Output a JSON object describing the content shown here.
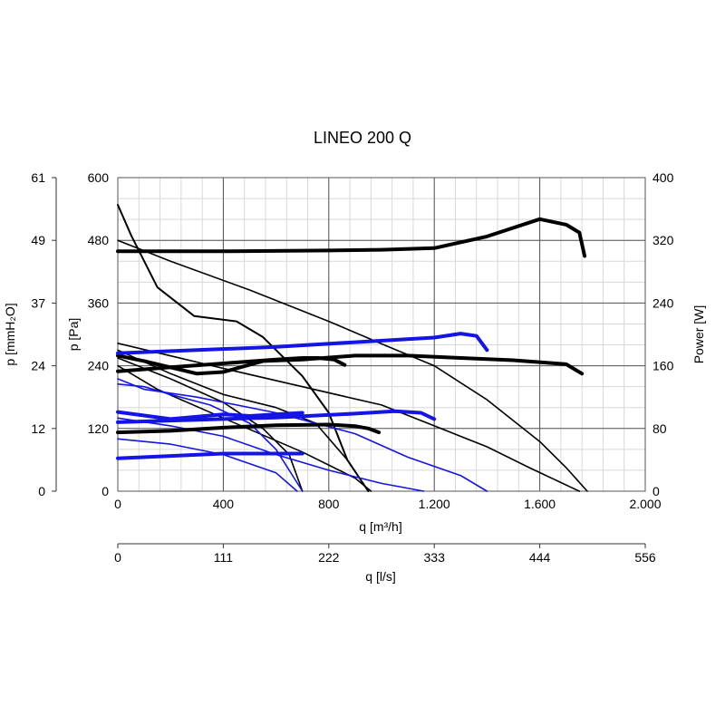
{
  "chart_data": {
    "type": "line",
    "title": "LINEO 200 Q",
    "x_axis": {
      "label": "q [m³/h]",
      "range": [
        0,
        2000
      ],
      "ticks": [
        0,
        400,
        800,
        1200,
        1600,
        2000
      ],
      "tick_labels": [
        "0",
        "400",
        "800",
        "1.200",
        "1.600",
        "2.000"
      ],
      "minor_step": 80
    },
    "x2_axis": {
      "label": "q [l/s]",
      "tick_labels": [
        "0",
        "111",
        "222",
        "333",
        "444",
        "556"
      ]
    },
    "y_axis": {
      "label": "p [Pa]",
      "range": [
        0,
        600
      ],
      "ticks": [
        0,
        120,
        240,
        360,
        480,
        600
      ],
      "tick_labels": [
        "0",
        "120",
        "240",
        "360",
        "480",
        "600"
      ],
      "minor_step": 40
    },
    "y2_axis": {
      "label": "p [mmH₂O]",
      "tick_labels": [
        "0",
        "12",
        "24",
        "37",
        "49",
        "61"
      ]
    },
    "y3_axis": {
      "label": "Power [W]",
      "range": [
        0,
        400
      ],
      "tick_labels": [
        "0",
        "80",
        "160",
        "240",
        "320",
        "400"
      ]
    },
    "grid": true,
    "colors": {
      "black": "#000000",
      "blue": "#1414e6",
      "grid_major": "#555555",
      "grid_minor": "#d8d8d8"
    },
    "series": [
      {
        "kind": "pressure",
        "color": "black",
        "width": 2,
        "points": [
          [
            0,
            548
          ],
          [
            50,
            490
          ],
          [
            150,
            390
          ],
          [
            290,
            335
          ],
          [
            450,
            325
          ],
          [
            550,
            295
          ],
          [
            700,
            220
          ],
          [
            800,
            150
          ],
          [
            870,
            60
          ],
          [
            950,
            0
          ]
        ]
      },
      {
        "kind": "pressure",
        "color": "black",
        "width": 1.6,
        "points": [
          [
            0,
            480
          ],
          [
            200,
            440
          ],
          [
            500,
            385
          ],
          [
            800,
            325
          ],
          [
            1000,
            282
          ],
          [
            1200,
            240
          ],
          [
            1400,
            175
          ],
          [
            1600,
            95
          ],
          [
            1700,
            45
          ],
          [
            1780,
            0
          ]
        ]
      },
      {
        "kind": "pressure",
        "color": "black",
        "width": 1.6,
        "points": [
          [
            0,
            283
          ],
          [
            150,
            265
          ],
          [
            400,
            235
          ],
          [
            700,
            200
          ],
          [
            1000,
            165
          ],
          [
            1200,
            125
          ],
          [
            1400,
            85
          ],
          [
            1560,
            45
          ],
          [
            1750,
            0
          ]
        ]
      },
      {
        "kind": "pressure",
        "color": "black",
        "width": 1.6,
        "points": [
          [
            0,
            270
          ],
          [
            200,
            225
          ],
          [
            400,
            185
          ],
          [
            600,
            160
          ],
          [
            750,
            130
          ],
          [
            870,
            60
          ],
          [
            950,
            0
          ]
        ]
      },
      {
        "kind": "pressure",
        "color": "black",
        "width": 1.6,
        "points": [
          [
            0,
            255
          ],
          [
            200,
            215
          ],
          [
            400,
            170
          ],
          [
            550,
            120
          ],
          [
            650,
            70
          ],
          [
            700,
            0
          ]
        ]
      },
      {
        "kind": "pressure",
        "color": "black",
        "width": 1.6,
        "points": [
          [
            0,
            240
          ],
          [
            150,
            195
          ],
          [
            400,
            140
          ],
          [
            700,
            75
          ],
          [
            900,
            25
          ],
          [
            960,
            0
          ]
        ]
      },
      {
        "kind": "pressure",
        "color": "blue",
        "width": 1.6,
        "points": [
          [
            0,
            215
          ],
          [
            100,
            195
          ],
          [
            300,
            180
          ],
          [
            600,
            150
          ],
          [
            900,
            110
          ],
          [
            1100,
            65
          ],
          [
            1300,
            30
          ],
          [
            1400,
            0
          ]
        ]
      },
      {
        "kind": "pressure",
        "color": "blue",
        "width": 1.6,
        "points": [
          [
            0,
            205
          ],
          [
            100,
            200
          ],
          [
            200,
            185
          ],
          [
            350,
            165
          ],
          [
            500,
            130
          ],
          [
            600,
            80
          ],
          [
            700,
            0
          ]
        ]
      },
      {
        "kind": "pressure",
        "color": "blue",
        "width": 1.6,
        "points": [
          [
            0,
            140
          ],
          [
            200,
            125
          ],
          [
            400,
            105
          ],
          [
            600,
            70
          ],
          [
            800,
            40
          ],
          [
            1000,
            15
          ],
          [
            1160,
            0
          ]
        ]
      },
      {
        "kind": "pressure",
        "color": "blue",
        "width": 1.6,
        "points": [
          [
            0,
            100
          ],
          [
            200,
            90
          ],
          [
            400,
            70
          ],
          [
            600,
            35
          ],
          [
            680,
            0
          ]
        ]
      },
      {
        "kind": "power",
        "color": "black",
        "width": 4,
        "points": [
          [
            0,
            306
          ],
          [
            400,
            306
          ],
          [
            800,
            307
          ],
          [
            1000,
            308
          ],
          [
            1200,
            310
          ],
          [
            1400,
            325
          ],
          [
            1600,
            347
          ],
          [
            1700,
            340
          ],
          [
            1750,
            330
          ],
          [
            1770,
            300
          ]
        ]
      },
      {
        "kind": "power",
        "color": "black",
        "width": 4,
        "points": [
          [
            0,
            153
          ],
          [
            200,
            158
          ],
          [
            400,
            163
          ],
          [
            600,
            168
          ],
          [
            700,
            170
          ],
          [
            760,
            170
          ],
          [
            820,
            168
          ],
          [
            860,
            161
          ]
        ]
      },
      {
        "kind": "power",
        "color": "black",
        "width": 4,
        "points": [
          [
            0,
            173
          ],
          [
            100,
            166
          ],
          [
            300,
            150
          ],
          [
            400,
            152
          ],
          [
            550,
            166
          ],
          [
            700,
            168
          ],
          [
            900,
            173
          ],
          [
            1100,
            173
          ],
          [
            1300,
            170
          ],
          [
            1500,
            167
          ],
          [
            1700,
            162
          ],
          [
            1760,
            150
          ]
        ]
      },
      {
        "kind": "power",
        "color": "black",
        "width": 4,
        "points": [
          [
            0,
            75
          ],
          [
            200,
            77
          ],
          [
            400,
            81
          ],
          [
            600,
            84
          ],
          [
            800,
            85
          ],
          [
            900,
            83
          ],
          [
            950,
            80
          ],
          [
            990,
            75
          ]
        ]
      },
      {
        "kind": "power",
        "color": "blue",
        "width": 4,
        "points": [
          [
            0,
            176
          ],
          [
            300,
            180
          ],
          [
            600,
            184
          ],
          [
            900,
            190
          ],
          [
            1200,
            196
          ],
          [
            1300,
            201
          ],
          [
            1360,
            198
          ],
          [
            1400,
            180
          ]
        ]
      },
      {
        "kind": "power",
        "color": "blue",
        "width": 4,
        "points": [
          [
            0,
            101
          ],
          [
            200,
            92
          ],
          [
            400,
            98
          ],
          [
            500,
            96
          ],
          [
            600,
            98
          ],
          [
            700,
            100
          ]
        ]
      },
      {
        "kind": "power",
        "color": "blue",
        "width": 4,
        "points": [
          [
            0,
            88
          ],
          [
            200,
            90
          ],
          [
            400,
            92
          ],
          [
            600,
            94
          ],
          [
            900,
            99
          ],
          [
            1050,
            102
          ],
          [
            1150,
            100
          ],
          [
            1200,
            92
          ]
        ]
      },
      {
        "kind": "power",
        "color": "blue",
        "width": 4,
        "points": [
          [
            0,
            42
          ],
          [
            200,
            45
          ],
          [
            400,
            48
          ],
          [
            550,
            48
          ],
          [
            700,
            48
          ]
        ]
      }
    ]
  }
}
